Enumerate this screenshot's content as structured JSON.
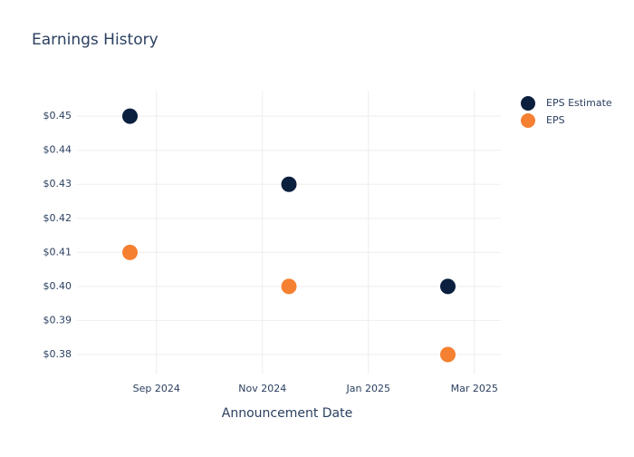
{
  "chart_data": {
    "type": "scatter",
    "title": "Earnings History",
    "x_label": "Announcement Date",
    "x": [
      "Aug 2024",
      "Nov 2024",
      "Feb 2025"
    ],
    "series": [
      {
        "name": "EPS Estimate",
        "color": "#0b1f3f",
        "values": [
          0.45,
          0.43,
          0.4
        ]
      },
      {
        "name": "EPS",
        "color": "#f58031",
        "values": [
          0.41,
          0.4,
          0.38
        ]
      }
    ],
    "xlim": [
      "Jul 2024",
      "Mar 2025"
    ],
    "xticks": [
      "Sep 2024",
      "Nov 2024",
      "Jan 2025",
      "Mar 2025"
    ],
    "ylim": [
      0.3744,
      0.4575
    ],
    "yticks": [
      {
        "value": 0.38,
        "label": "$0.38"
      },
      {
        "value": 0.39,
        "label": "$0.39"
      },
      {
        "value": 0.4,
        "label": "$0.40"
      },
      {
        "value": 0.41,
        "label": "$0.41"
      },
      {
        "value": 0.42,
        "label": "$0.42"
      },
      {
        "value": 0.43,
        "label": "$0.43"
      },
      {
        "value": 0.44,
        "label": "$0.44"
      },
      {
        "value": 0.45,
        "label": "$0.45"
      }
    ],
    "grid": true,
    "legend": "top-right"
  }
}
